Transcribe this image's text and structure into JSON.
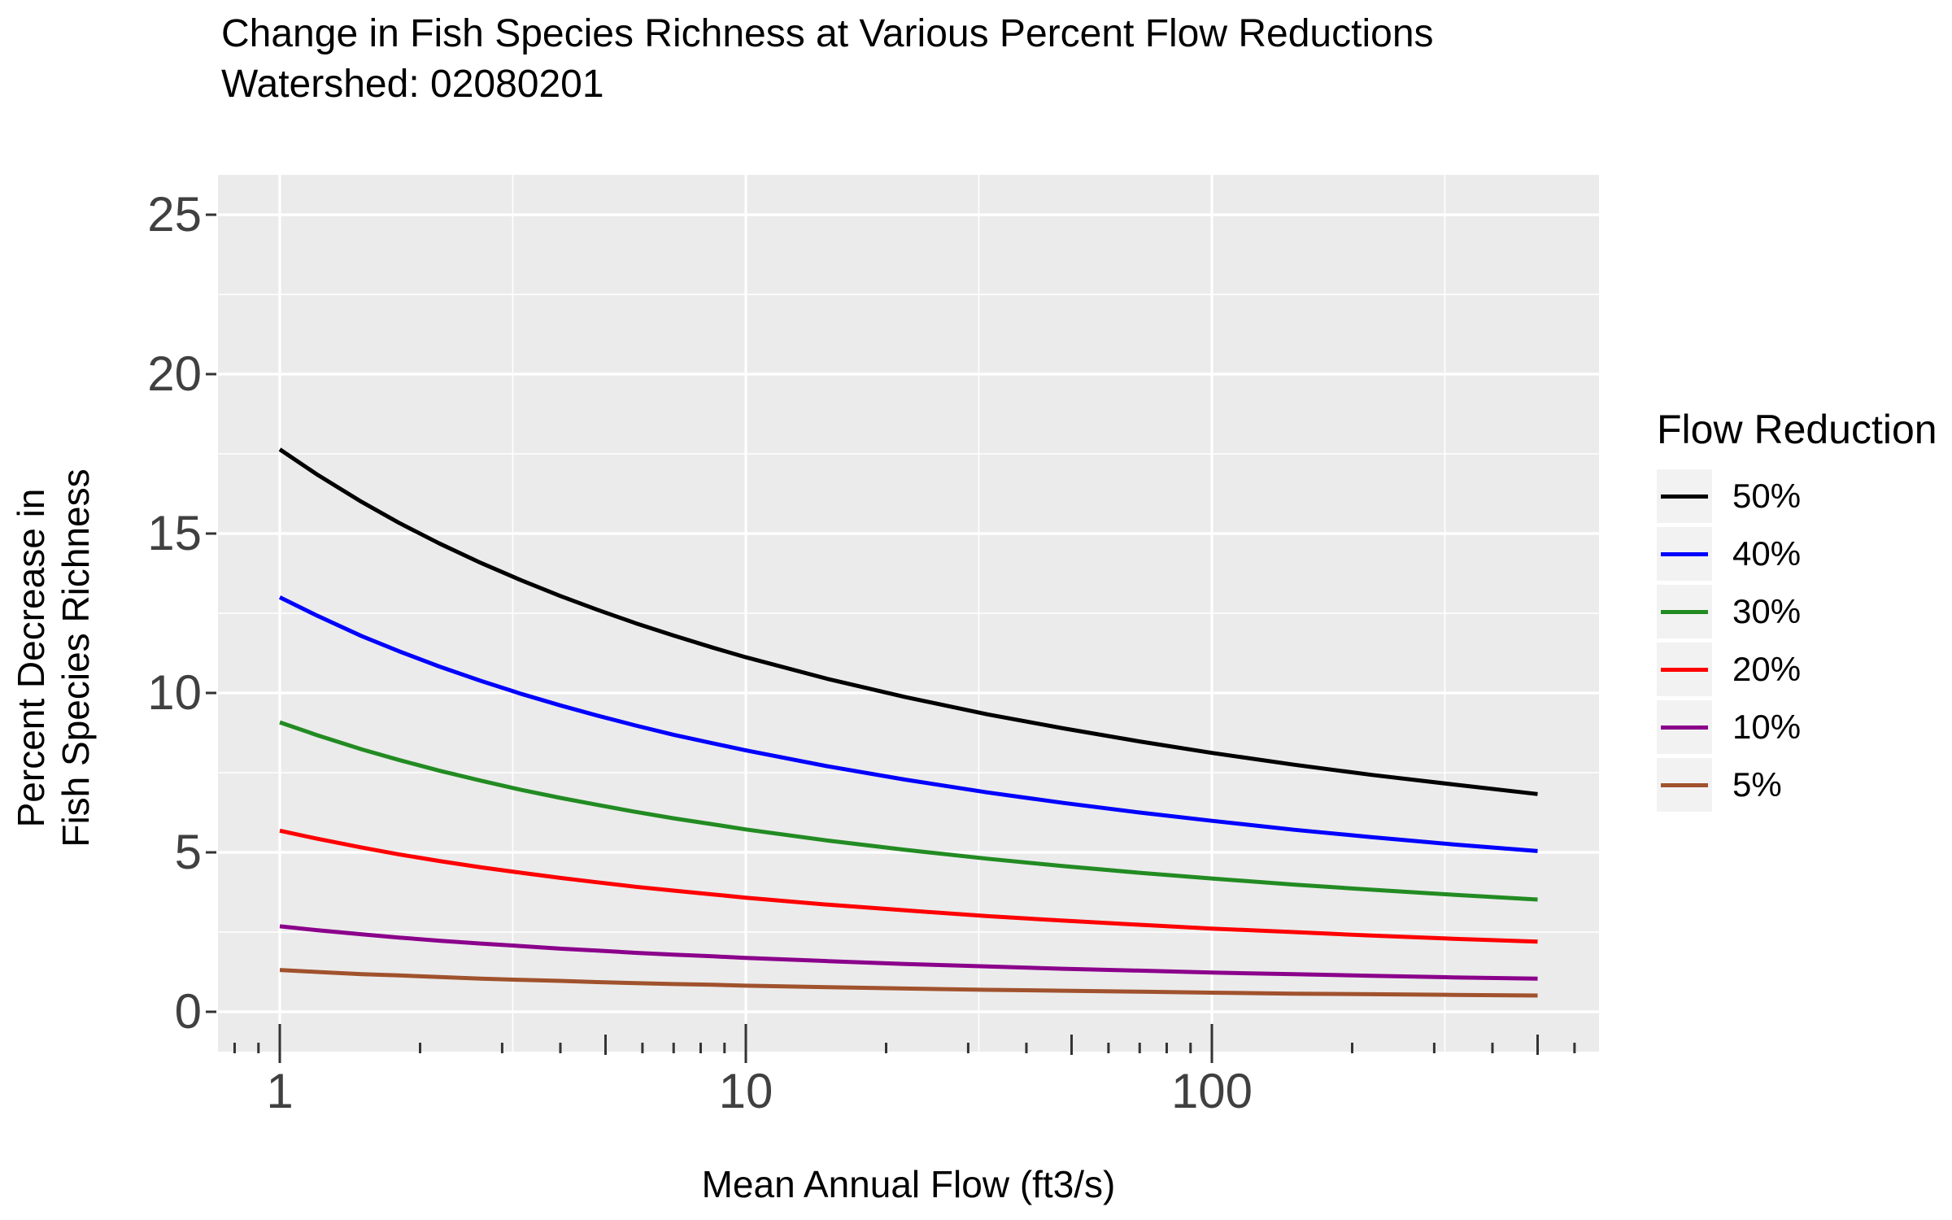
{
  "title": {
    "line1": "Change in Fish Species Richness at Various Percent Flow Reductions",
    "line2": "Watershed: 02080201"
  },
  "axes": {
    "x": {
      "title": "Mean Annual Flow (ft3/s)",
      "scale": "log10",
      "major_breaks": [
        {
          "value": 1,
          "label": "1"
        },
        {
          "value": 10,
          "label": "10"
        },
        {
          "value": 100,
          "label": "100"
        }
      ],
      "minor_break_values": [
        3.162,
        31.62,
        316.2
      ],
      "log_ticks": [
        {
          "value": 0.8,
          "size": "short"
        },
        {
          "value": 0.9,
          "size": "short"
        },
        {
          "value": 1,
          "size": "long"
        },
        {
          "value": 2,
          "size": "short"
        },
        {
          "value": 3,
          "size": "short"
        },
        {
          "value": 4,
          "size": "short"
        },
        {
          "value": 5,
          "size": "medium"
        },
        {
          "value": 6,
          "size": "short"
        },
        {
          "value": 7,
          "size": "short"
        },
        {
          "value": 8,
          "size": "short"
        },
        {
          "value": 9,
          "size": "short"
        },
        {
          "value": 10,
          "size": "long"
        },
        {
          "value": 20,
          "size": "short"
        },
        {
          "value": 30,
          "size": "short"
        },
        {
          "value": 40,
          "size": "short"
        },
        {
          "value": 50,
          "size": "medium"
        },
        {
          "value": 60,
          "size": "short"
        },
        {
          "value": 70,
          "size": "short"
        },
        {
          "value": 80,
          "size": "short"
        },
        {
          "value": 90,
          "size": "short"
        },
        {
          "value": 100,
          "size": "long"
        },
        {
          "value": 200,
          "size": "short"
        },
        {
          "value": 300,
          "size": "short"
        },
        {
          "value": 400,
          "size": "short"
        },
        {
          "value": 500,
          "size": "medium"
        },
        {
          "value": 600,
          "size": "short"
        }
      ]
    },
    "y": {
      "title_line1": "Percent Decrease in",
      "title_line2": "Fish Species Richness",
      "major_breaks": [
        {
          "value": 0,
          "label": "0"
        },
        {
          "value": 5,
          "label": "5"
        },
        {
          "value": 10,
          "label": "10"
        },
        {
          "value": 15,
          "label": "15"
        },
        {
          "value": 20,
          "label": "20"
        },
        {
          "value": 25,
          "label": "25"
        }
      ],
      "minor_break_values": [
        2.5,
        7.5,
        12.5,
        17.5,
        22.5
      ]
    }
  },
  "legend": {
    "title": "Flow Reduction"
  },
  "colors": {
    "panel_bg": "#EBEBEB",
    "grid": "#FFFFFF",
    "tick": "#333333",
    "axis_text": "#404040",
    "text": "#000000",
    "legend_key_bg": "#F2F2F2"
  },
  "chart_data": {
    "type": "line",
    "title": "Change in Fish Species Richness at Various Percent Flow Reductions",
    "subtitle": "Watershed: 02080201",
    "xlabel": "Mean Annual Flow (ft3/s)",
    "ylabel": "Percent Decrease in Fish Species Richness",
    "x_scale": "log10",
    "xlim": [
      1,
      500
    ],
    "ylim": [
      0,
      25
    ],
    "grid": "on",
    "legend_position": "right",
    "legend_title": "Flow Reduction",
    "x": [
      1,
      1.2,
      1.5,
      1.8,
      2.2,
      2.7,
      3.3,
      4,
      4.8,
      5.8,
      7,
      8.5,
      10,
      15,
      22,
      33,
      48,
      70,
      100,
      150,
      220,
      330,
      500
    ],
    "series": [
      {
        "name": "50%",
        "color": "#000000",
        "values": [
          17.64,
          16.86,
          15.99,
          15.34,
          14.69,
          14.08,
          13.53,
          13.04,
          12.61,
          12.19,
          11.8,
          11.42,
          11.12,
          10.44,
          9.87,
          9.33,
          8.89,
          8.48,
          8.12,
          7.75,
          7.43,
          7.13,
          6.83
        ]
      },
      {
        "name": "40%",
        "color": "#0000FF",
        "values": [
          13.0,
          12.43,
          11.78,
          11.31,
          10.83,
          10.38,
          9.97,
          9.61,
          9.29,
          8.98,
          8.69,
          8.42,
          8.2,
          7.7,
          7.28,
          6.88,
          6.55,
          6.25,
          5.99,
          5.71,
          5.48,
          5.25,
          5.04
        ]
      },
      {
        "name": "30%",
        "color": "#228B22",
        "values": [
          9.08,
          8.68,
          8.23,
          7.9,
          7.56,
          7.25,
          6.96,
          6.71,
          6.49,
          6.27,
          6.07,
          5.88,
          5.72,
          5.37,
          5.08,
          4.8,
          4.57,
          4.36,
          4.18,
          3.99,
          3.83,
          3.67,
          3.52
        ]
      },
      {
        "name": "20%",
        "color": "#FF0000",
        "values": [
          5.68,
          5.43,
          5.15,
          4.94,
          4.73,
          4.53,
          4.36,
          4.2,
          4.06,
          3.92,
          3.8,
          3.68,
          3.58,
          3.36,
          3.18,
          3.0,
          2.86,
          2.73,
          2.61,
          2.5,
          2.39,
          2.29,
          2.2
        ]
      },
      {
        "name": "10%",
        "color": "#8B008B",
        "values": [
          2.68,
          2.56,
          2.43,
          2.33,
          2.23,
          2.14,
          2.06,
          1.98,
          1.92,
          1.85,
          1.79,
          1.74,
          1.69,
          1.59,
          1.5,
          1.42,
          1.35,
          1.29,
          1.23,
          1.18,
          1.13,
          1.08,
          1.04
        ]
      },
      {
        "name": "5%",
        "color": "#A0522D",
        "values": [
          1.31,
          1.25,
          1.18,
          1.14,
          1.09,
          1.04,
          1.0,
          0.97,
          0.93,
          0.9,
          0.87,
          0.85,
          0.82,
          0.77,
          0.73,
          0.69,
          0.66,
          0.63,
          0.6,
          0.57,
          0.55,
          0.53,
          0.51
        ]
      }
    ]
  }
}
